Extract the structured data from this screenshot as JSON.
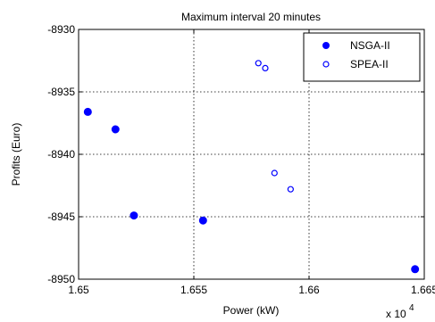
{
  "chart_data": {
    "type": "scatter",
    "title": "Maximum interval 20 minutes",
    "xlabel": "Power (kW)",
    "ylabel": "Profits (Euro)",
    "x_multiplier": "x 10",
    "x_exponent": "4",
    "xlim": [
      1.65,
      1.665
    ],
    "ylim": [
      -8950,
      -8930
    ],
    "xticks": [
      1.65,
      1.655,
      1.66,
      1.665
    ],
    "xtick_labels": [
      "1.65",
      "1.655",
      "1.66",
      "1.665"
    ],
    "yticks": [
      -8950,
      -8945,
      -8940,
      -8935,
      -8930
    ],
    "ytick_labels": [
      "-8950",
      "-8945",
      "-8940",
      "-8935",
      "-8930"
    ],
    "grid": true,
    "legend_position": "top-right",
    "series": [
      {
        "name": "NSGA-II",
        "marker": "filled-circle",
        "color": "#0000ff",
        "points": [
          {
            "x": 1.6504,
            "y": -8936.6
          },
          {
            "x": 1.6516,
            "y": -8938.0
          },
          {
            "x": 1.6524,
            "y": -8944.9
          },
          {
            "x": 1.6554,
            "y": -8945.3
          },
          {
            "x": 1.6646,
            "y": -8949.2
          }
        ]
      },
      {
        "name": "SPEA-II",
        "marker": "open-circle",
        "color": "#0000ff",
        "points": [
          {
            "x": 1.6578,
            "y": -8932.7
          },
          {
            "x": 1.6581,
            "y": -8933.1
          },
          {
            "x": 1.6585,
            "y": -8941.5
          },
          {
            "x": 1.6592,
            "y": -8942.8
          }
        ]
      }
    ]
  }
}
